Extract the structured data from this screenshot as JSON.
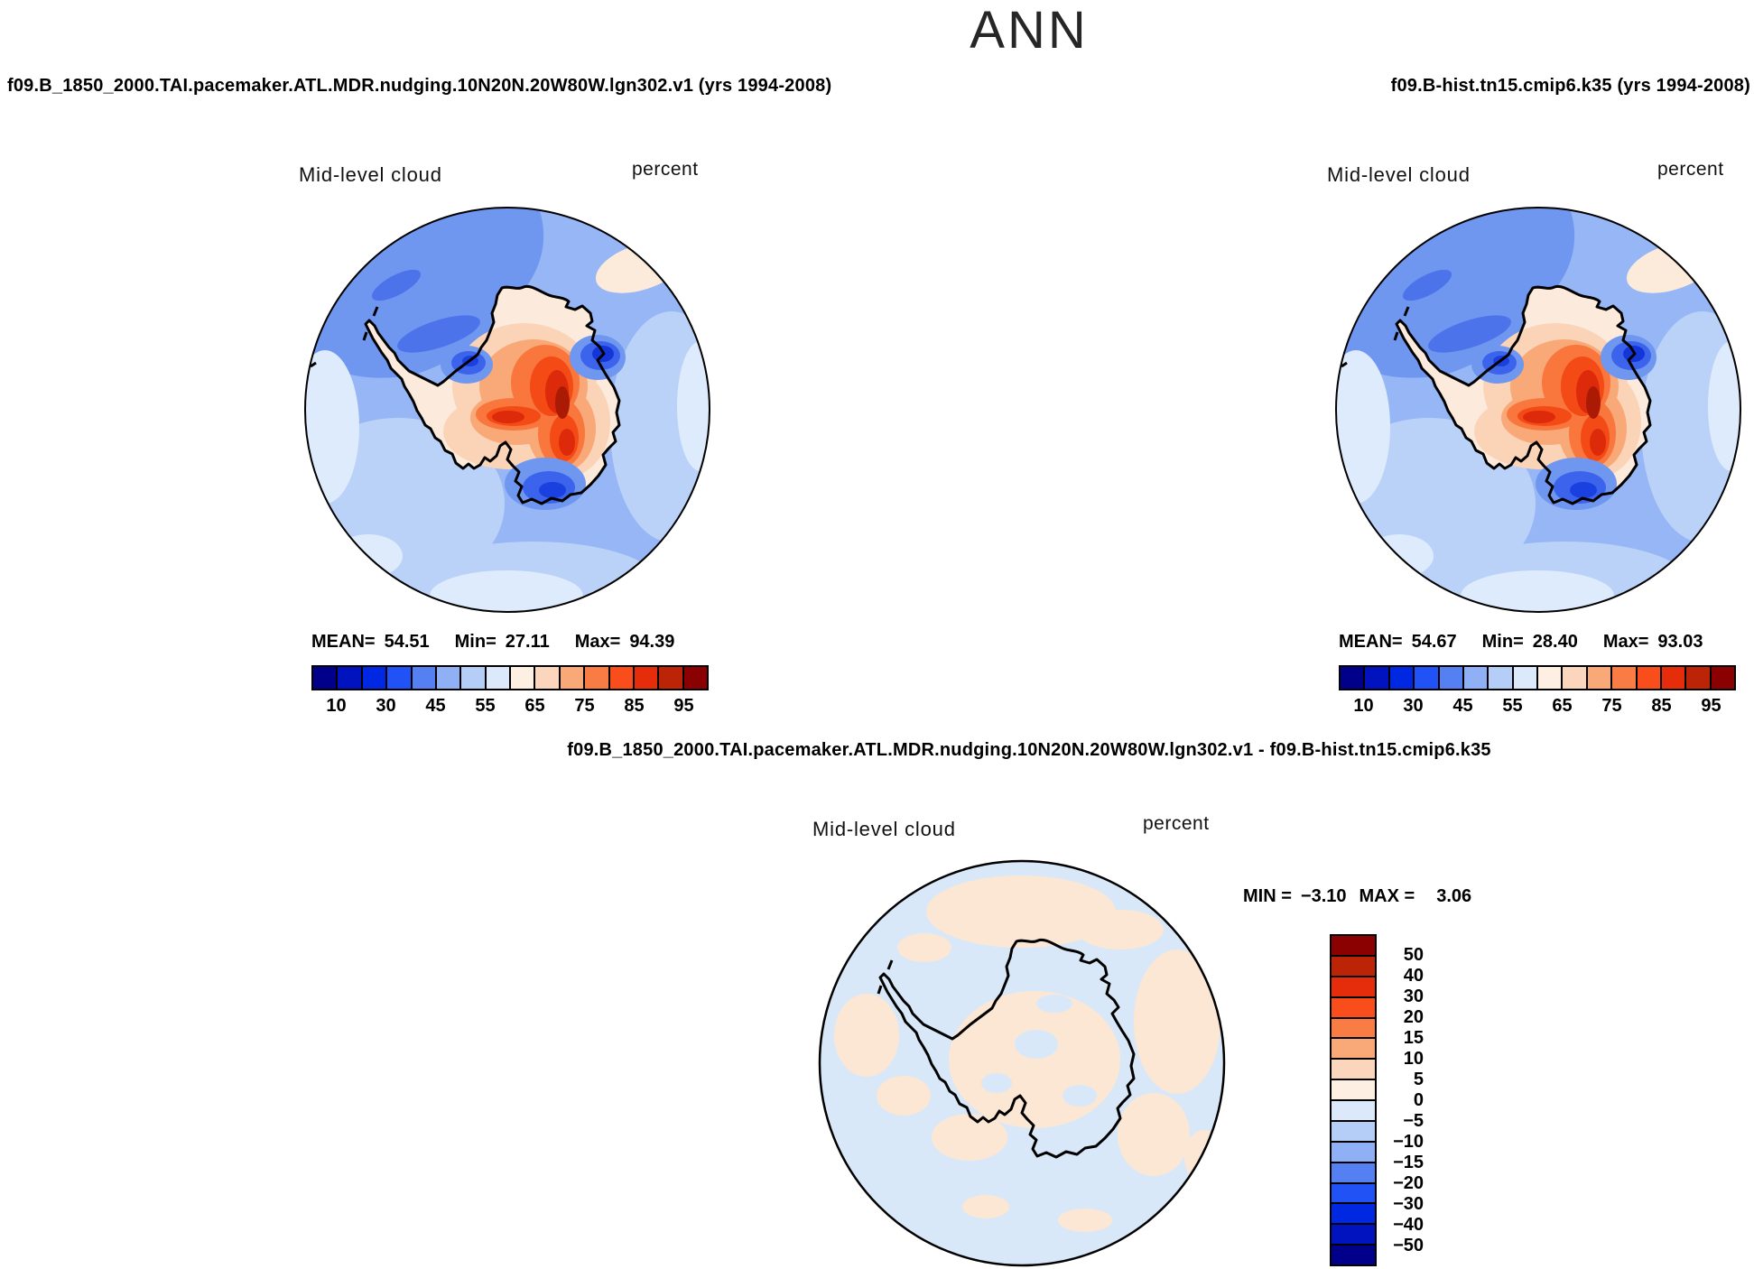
{
  "title": "ANN",
  "panels": {
    "case1": {
      "header": "f09.B_1850_2000.TAI.pacemaker.ATL.MDR.nudging.10N20N.20W80W.lgn302.v1 (yrs 1994-2008)",
      "variable": "Mid-level cloud",
      "units": "percent",
      "stats": {
        "mean_label": "MEAN=",
        "mean": "54.51",
        "min_label": "Min=",
        "min": "27.11",
        "max_label": "Max=",
        "max": "94.39"
      }
    },
    "case2": {
      "header": "f09.B-hist.tn15.cmip6.k35 (yrs 1994-2008)",
      "variable": "Mid-level cloud",
      "units": "percent",
      "stats": {
        "mean_label": "MEAN=",
        "mean": "54.67",
        "min_label": "Min=",
        "min": "28.40",
        "max_label": "Max=",
        "max": "93.03"
      }
    },
    "diff": {
      "header": "f09.B_1850_2000.TAI.pacemaker.ATL.MDR.nudging.10N20N.20W80W.lgn302.v1 - f09.B-hist.tn15.cmip6.k35",
      "variable": "Mid-level cloud",
      "units": "percent",
      "stats": {
        "min_label": "MIN =",
        "min": "−3.10",
        "max_label": "MAX =",
        "max": "3.06"
      }
    }
  },
  "colorbar_percent": {
    "colors": [
      "#00008B",
      "#0013BF",
      "#0028E2",
      "#2052F5",
      "#5480F2",
      "#8FB0F4",
      "#B5CEF8",
      "#DCE9FB",
      "#FDEFE2",
      "#FBD5BC",
      "#F9A878",
      "#F97C44",
      "#F94E1B",
      "#E52D0C",
      "#BC2408",
      "#8B0000"
    ],
    "tick_labels": [
      "10",
      "30",
      "45",
      "55",
      "65",
      "75",
      "85",
      "95"
    ]
  },
  "colorbar_diff": {
    "colors": [
      "#8B0000",
      "#BC2408",
      "#E52D0C",
      "#F94E1B",
      "#F97C44",
      "#F9A878",
      "#FBD5BC",
      "#FDEFE2",
      "#DCE9FB",
      "#B5CEF8",
      "#8FB0F4",
      "#5480F2",
      "#2052F5",
      "#0028E2",
      "#0013BF",
      "#00008B"
    ],
    "tick_labels": [
      "50",
      "40",
      "30",
      "20",
      "15",
      "10",
      "5",
      "0",
      "−5",
      "−10",
      "−15",
      "−20",
      "−30",
      "−40",
      "−50"
    ]
  },
  "chart_data": [
    {
      "type": "heatmap",
      "panel": "case1",
      "title": "f09.B_1850_2000.TAI.pacemaker.ATL.MDR.nudging.10N20N.20W80W.lgn302.v1 (yrs 1994-2008)",
      "variable": "Mid-level cloud",
      "units": "percent",
      "projection": "south-polar-stereographic",
      "stats": {
        "mean": 54.51,
        "min": 27.11,
        "max": 94.39
      },
      "contour_levels": [
        10,
        20,
        30,
        40,
        45,
        50,
        55,
        60,
        65,
        70,
        75,
        80,
        85,
        90,
        95
      ],
      "colorbar_tick_labels": [
        10,
        30,
        45,
        55,
        65,
        75,
        85,
        95
      ],
      "legend_position": "below"
    },
    {
      "type": "heatmap",
      "panel": "case2",
      "title": "f09.B-hist.tn15.cmip6.k35 (yrs 1994-2008)",
      "variable": "Mid-level cloud",
      "units": "percent",
      "projection": "south-polar-stereographic",
      "stats": {
        "mean": 54.67,
        "min": 28.4,
        "max": 93.03
      },
      "contour_levels": [
        10,
        20,
        30,
        40,
        45,
        50,
        55,
        60,
        65,
        70,
        75,
        80,
        85,
        90,
        95
      ],
      "colorbar_tick_labels": [
        10,
        30,
        45,
        55,
        65,
        75,
        85,
        95
      ],
      "legend_position": "below"
    },
    {
      "type": "heatmap",
      "panel": "difference",
      "title": "f09.B_1850_2000.TAI.pacemaker.ATL.MDR.nudging.10N20N.20W80W.lgn302.v1 - f09.B-hist.tn15.cmip6.k35",
      "variable": "Mid-level cloud",
      "units": "percent",
      "projection": "south-polar-stereographic",
      "stats": {
        "min": -3.1,
        "max": 3.06
      },
      "contour_levels": [
        -50,
        -40,
        -30,
        -20,
        -15,
        -10,
        -5,
        0,
        5,
        10,
        15,
        20,
        30,
        40,
        50
      ],
      "legend_position": "right"
    }
  ]
}
